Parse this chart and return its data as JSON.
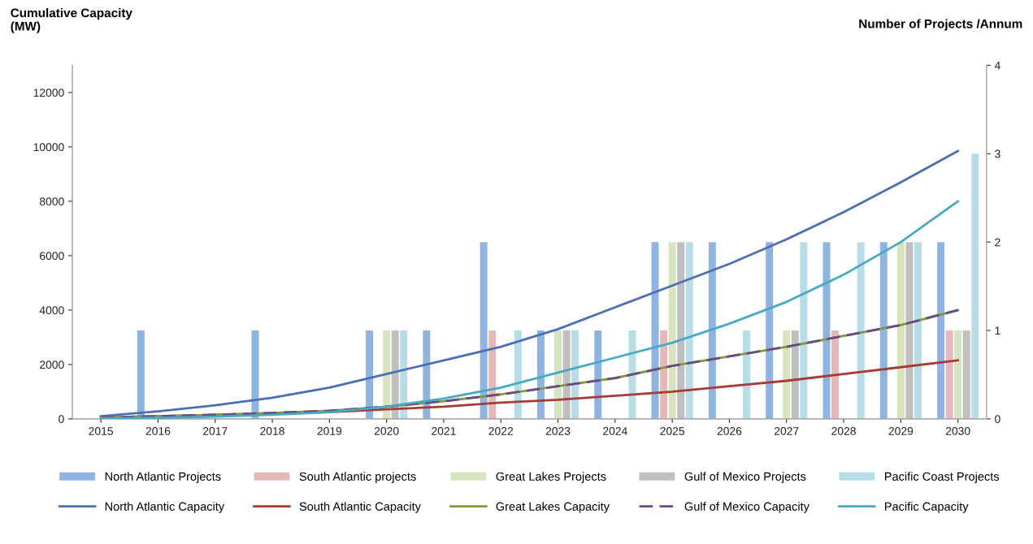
{
  "chart_data": {
    "type": "bar",
    "ylabel": "Cumulative Capacity\n(MW)",
    "y2label": "Number of Projects /Annum",
    "categories": [
      "2015",
      "2016",
      "2017",
      "2018",
      "2019",
      "2020",
      "2021",
      "2022",
      "2023",
      "2024",
      "2025",
      "2026",
      "2027",
      "2028",
      "2029",
      "2030"
    ],
    "series": [
      {
        "name": "North Atlantic Projects",
        "axis": "y2",
        "color": "#8eb4e3",
        "values": [
          0,
          1,
          0,
          1,
          0,
          1,
          1,
          2,
          1,
          1,
          2,
          2,
          2,
          2,
          2,
          2
        ]
      },
      {
        "name": "North Atlantic Capacity",
        "type": "line",
        "color": "#4a6fb5",
        "values": [
          100,
          280,
          500,
          780,
          1150,
          1650,
          2150,
          2650,
          3300,
          4100,
          4900,
          5700,
          6600,
          7600,
          8700,
          9850
        ]
      },
      {
        "name": "South Atlantic projects",
        "axis": "y2",
        "color": "#e6b9b8",
        "values": [
          0,
          0,
          0,
          0,
          0,
          0,
          0,
          1,
          0,
          0,
          1,
          0,
          0,
          1,
          0,
          1
        ]
      },
      {
        "name": "South Atlantic Capacity",
        "type": "line",
        "color": "#a83a36",
        "values": [
          50,
          100,
          150,
          200,
          250,
          350,
          450,
          600,
          700,
          850,
          1000,
          1200,
          1400,
          1650,
          1900,
          2150
        ]
      },
      {
        "name": "Great Lakes Projects",
        "axis": "y2",
        "color": "#d7e4bd",
        "values": [
          0,
          0,
          0,
          0,
          0,
          1,
          0,
          0,
          1,
          0,
          2,
          0,
          1,
          0,
          2,
          1
        ]
      },
      {
        "name": "Great Lakes Capacity",
        "type": "line",
        "color": "#7f9b35",
        "values": [
          50,
          100,
          150,
          220,
          300,
          450,
          650,
          900,
          1200,
          1500,
          1950,
          2300,
          2650,
          3050,
          3450,
          4000
        ]
      },
      {
        "name": "Gulf of Mexico Projects",
        "axis": "y2",
        "color": "#bfbfbf",
        "values": [
          0,
          0,
          0,
          0,
          0,
          1,
          0,
          0,
          1,
          0,
          2,
          0,
          1,
          0,
          2,
          1
        ]
      },
      {
        "name": "Gulf of Mexico Capacity",
        "type": "line",
        "line_style": "dashed",
        "color": "#6b4a8a",
        "values": [
          50,
          100,
          150,
          220,
          300,
          450,
          650,
          900,
          1200,
          1500,
          1950,
          2300,
          2650,
          3050,
          3450,
          4000
        ]
      },
      {
        "name": "Pacific Coast Projects",
        "axis": "y2",
        "color": "#b7dee8",
        "values": [
          0,
          0,
          0,
          0,
          0,
          1,
          0,
          1,
          1,
          1,
          2,
          1,
          2,
          2,
          2,
          3
        ]
      },
      {
        "name": "Pacific Capacity",
        "type": "line",
        "color": "#46aac5",
        "values": [
          20,
          40,
          80,
          150,
          250,
          450,
          750,
          1150,
          1700,
          2250,
          2800,
          3500,
          4300,
          5300,
          6500,
          8000
        ]
      }
    ],
    "ylim": [
      0,
      13000
    ],
    "yticks": [
      0,
      2000,
      4000,
      6000,
      8000,
      10000,
      12000
    ],
    "y2lim": [
      0,
      4
    ],
    "y2ticks": [
      0,
      1,
      2,
      3,
      4
    ],
    "grid": false,
    "legend": "bottom"
  }
}
